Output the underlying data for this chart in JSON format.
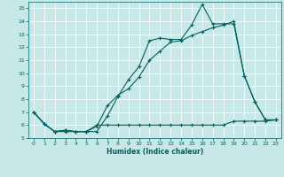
{
  "xlabel": "Humidex (Indice chaleur)",
  "xlim": [
    -0.5,
    23.5
  ],
  "ylim": [
    5,
    15.5
  ],
  "xticks": [
    0,
    1,
    2,
    3,
    4,
    5,
    6,
    7,
    8,
    9,
    10,
    11,
    12,
    13,
    14,
    15,
    16,
    17,
    18,
    19,
    20,
    21,
    22,
    23
  ],
  "yticks": [
    5,
    6,
    7,
    8,
    9,
    10,
    11,
    12,
    13,
    14,
    15
  ],
  "bg_color": "#c8e8e8",
  "line_color": "#006060",
  "line1_x": [
    0,
    1,
    2,
    3,
    4,
    5,
    6,
    7,
    8,
    9,
    10,
    11,
    12,
    13,
    14,
    15,
    16,
    17,
    18,
    19,
    20,
    21,
    22,
    23
  ],
  "line1_y": [
    7.0,
    6.1,
    5.5,
    5.6,
    5.5,
    5.5,
    5.5,
    6.7,
    8.2,
    9.5,
    10.5,
    12.5,
    12.7,
    12.6,
    12.6,
    13.7,
    15.3,
    13.8,
    13.8,
    13.8,
    9.8,
    7.8,
    6.4,
    6.4
  ],
  "line2_x": [
    0,
    1,
    2,
    3,
    4,
    5,
    6,
    7,
    8,
    9,
    10,
    11,
    12,
    13,
    14,
    15,
    16,
    17,
    18,
    19,
    20,
    21,
    22,
    23
  ],
  "line2_y": [
    7.0,
    6.1,
    5.5,
    5.6,
    5.5,
    5.5,
    5.9,
    7.5,
    8.3,
    8.8,
    9.7,
    11.0,
    11.7,
    12.4,
    12.5,
    12.9,
    13.2,
    13.5,
    13.7,
    14.0,
    9.8,
    7.8,
    6.4,
    6.4
  ],
  "line3_x": [
    0,
    1,
    2,
    3,
    4,
    5,
    6,
    7,
    8,
    9,
    10,
    11,
    12,
    13,
    14,
    15,
    16,
    17,
    18,
    19,
    20,
    21,
    22,
    23
  ],
  "line3_y": [
    7.0,
    6.1,
    5.5,
    5.5,
    5.5,
    5.5,
    6.0,
    6.0,
    6.0,
    6.0,
    6.0,
    6.0,
    6.0,
    6.0,
    6.0,
    6.0,
    6.0,
    6.0,
    6.0,
    6.3,
    6.3,
    6.3,
    6.3,
    6.4
  ]
}
